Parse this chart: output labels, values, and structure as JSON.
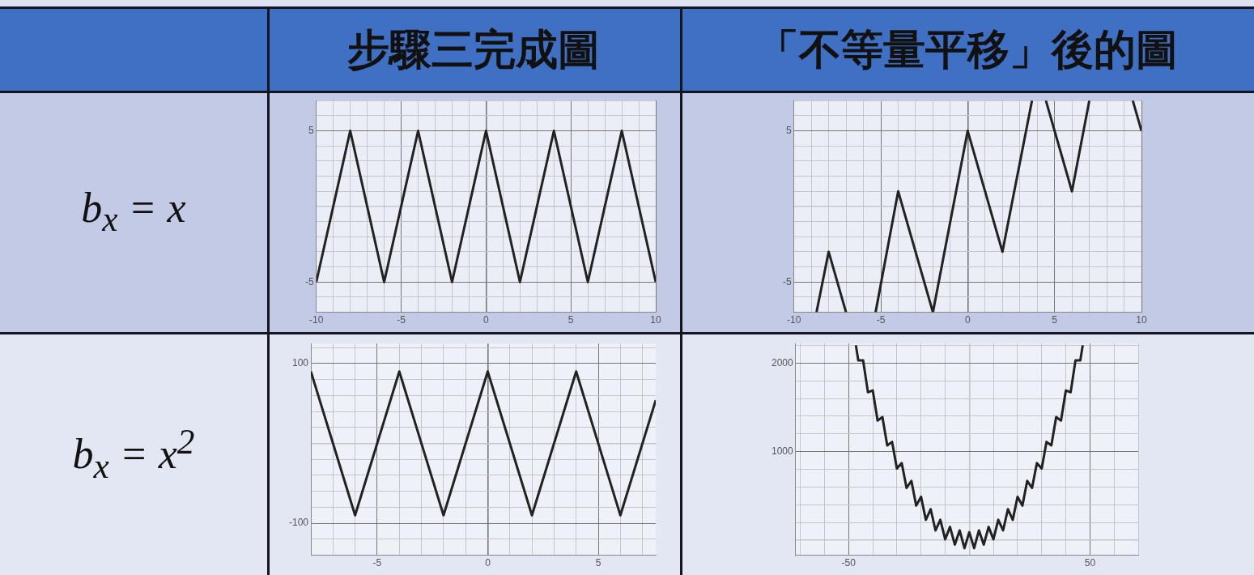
{
  "chart_data": [
    {
      "type": "other",
      "annotations": [
        "步驟三完成圖",
        "「不等量平移」後的圖",
        "b$_{x}$ = x",
        "b$_{x}$ = x$^{2}$"
      ]
    },
    {
      "type": "line",
      "grid": true,
      "xlim": [
        -10,
        10
      ],
      "ylim": [
        -7,
        7
      ],
      "xticks": [
        -10,
        {
          "value": -9,
          "label": null
        },
        {
          "value": -8,
          "label": null
        },
        {
          "value": -7,
          "label": null
        },
        {
          "value": -6,
          "label": null
        },
        -5,
        {
          "value": -4,
          "label": null
        },
        {
          "value": -3,
          "label": null
        },
        {
          "value": -2,
          "label": null
        },
        {
          "value": -1,
          "label": null
        },
        0,
        {
          "value": 1,
          "label": null
        },
        {
          "value": 2,
          "label": null
        },
        {
          "value": 3,
          "label": null
        },
        {
          "value": 4,
          "label": null
        },
        5,
        {
          "value": 6,
          "label": null
        },
        {
          "value": 7,
          "label": null
        },
        {
          "value": 8,
          "label": null
        },
        {
          "value": 9,
          "label": null
        },
        10
      ],
      "yticks": [
        {
          "value": -7,
          "label": null
        },
        {
          "value": -6,
          "label": null
        },
        -5,
        {
          "value": -4,
          "label": null
        },
        {
          "value": -3,
          "label": null
        },
        {
          "value": -2,
          "label": null
        },
        {
          "value": -1,
          "label": null
        },
        {
          "value": 0,
          "label": null
        },
        {
          "value": 1,
          "label": null
        },
        {
          "value": 2,
          "label": null
        },
        {
          "value": 3,
          "label": null
        },
        {
          "value": 4,
          "label": null
        },
        5,
        {
          "value": 6,
          "label": null
        },
        {
          "value": 7,
          "label": null
        }
      ],
      "series": [
        {
          "color": "#222222",
          "x": [
            -10,
            -8,
            -6,
            -4,
            -2,
            0,
            2,
            4,
            6,
            8,
            10
          ],
          "values": [
            -5,
            5,
            -5,
            5,
            -5,
            5,
            -5,
            5,
            -5,
            5,
            -5
          ]
        }
      ]
    },
    {
      "type": "line",
      "grid": true,
      "xlim": [
        -10,
        10
      ],
      "ylim": [
        -7,
        7
      ],
      "xticks": [
        -10,
        {
          "value": -9,
          "label": null
        },
        {
          "value": -8,
          "label": null
        },
        {
          "value": -7,
          "label": null
        },
        {
          "value": -6,
          "label": null
        },
        -5,
        {
          "value": -4,
          "label": null
        },
        {
          "value": -3,
          "label": null
        },
        {
          "value": -2,
          "label": null
        },
        {
          "value": -1,
          "label": null
        },
        0,
        {
          "value": 1,
          "label": null
        },
        {
          "value": 2,
          "label": null
        },
        {
          "value": 3,
          "label": null
        },
        {
          "value": 4,
          "label": null
        },
        5,
        {
          "value": 6,
          "label": null
        },
        {
          "value": 7,
          "label": null
        },
        {
          "value": 8,
          "label": null
        },
        {
          "value": 9,
          "label": null
        },
        10
      ],
      "yticks": [
        {
          "value": -7,
          "label": null
        },
        {
          "value": -6,
          "label": null
        },
        -5,
        {
          "value": -4,
          "label": null
        },
        {
          "value": -3,
          "label": null
        },
        {
          "value": -2,
          "label": null
        },
        {
          "value": -1,
          "label": null
        },
        {
          "value": 0,
          "label": null
        },
        {
          "value": 1,
          "label": null
        },
        {
          "value": 2,
          "label": null
        },
        {
          "value": 3,
          "label": null
        },
        {
          "value": 4,
          "label": null
        },
        5,
        {
          "value": 6,
          "label": null
        },
        {
          "value": 7,
          "label": null
        }
      ],
      "series": [
        {
          "color": "#222222",
          "x": [
            -8.7,
            -8,
            -7,
            -6,
            -5.3,
            -4,
            -2,
            0,
            2,
            3.7,
            4,
            4.5,
            6,
            7,
            8,
            9.5,
            10
          ],
          "values": [
            -7,
            -3,
            -7,
            null,
            -7,
            1,
            -7,
            5,
            -3,
            7,
            null,
            7,
            1,
            7,
            null,
            7,
            5
          ]
        }
      ]
    },
    {
      "type": "line",
      "grid": true,
      "xlim": [
        -8,
        7.6
      ],
      "ylim": [
        -140,
        125
      ],
      "xticks": [
        {
          "value": -8,
          "label": null
        },
        {
          "value": -7,
          "label": null
        },
        {
          "value": -6,
          "label": null
        },
        -5,
        {
          "value": -4,
          "label": null
        },
        {
          "value": -3,
          "label": null
        },
        {
          "value": -2,
          "label": null
        },
        {
          "value": -1,
          "label": null
        },
        0,
        {
          "value": 1,
          "label": null
        },
        {
          "value": 2,
          "label": null
        },
        {
          "value": 3,
          "label": null
        },
        {
          "value": 4,
          "label": null
        },
        5,
        {
          "value": 6,
          "label": null
        },
        {
          "value": 7,
          "label": null
        }
      ],
      "yticks": [
        {
          "value": -140,
          "label": null
        },
        {
          "value": -120,
          "label": null
        },
        -100,
        {
          "value": -80,
          "label": null
        },
        {
          "value": -60,
          "label": null
        },
        {
          "value": -40,
          "label": null
        },
        {
          "value": -20,
          "label": null
        },
        {
          "value": 0,
          "label": null
        },
        {
          "value": 20,
          "label": null
        },
        {
          "value": 40,
          "label": null
        },
        {
          "value": 60,
          "label": null
        },
        {
          "value": 80,
          "label": null
        },
        100,
        {
          "value": 120,
          "label": null
        }
      ],
      "series": [
        {
          "color": "#222222",
          "x": [
            -8,
            -6,
            -4,
            -2,
            0,
            2,
            4,
            6,
            7.6
          ],
          "values": [
            90,
            -90,
            90,
            -90,
            90,
            -90,
            90,
            -90,
            54
          ]
        }
      ]
    },
    {
      "type": "line",
      "grid": true,
      "xlim": [
        -72,
        70
      ],
      "ylim": [
        -170,
        2220
      ],
      "xticks": [
        {
          "value": -70,
          "label": null
        },
        {
          "value": -60,
          "label": null
        },
        -50,
        {
          "value": -40,
          "label": null
        },
        {
          "value": -30,
          "label": null
        },
        {
          "value": -20,
          "label": null
        },
        {
          "value": -10,
          "label": null
        },
        {
          "value": 0,
          "label": null
        },
        {
          "value": 10,
          "label": null
        },
        {
          "value": 20,
          "label": null
        },
        {
          "value": 30,
          "label": null
        },
        {
          "value": 40,
          "label": null
        },
        50,
        {
          "value": 60,
          "label": null
        },
        {
          "value": 70,
          "label": null
        }
      ],
      "yticks": [
        {
          "value": 0,
          "label": null
        },
        {
          "value": 200,
          "label": null
        },
        {
          "value": 400,
          "label": null
        },
        {
          "value": 600,
          "label": null
        },
        {
          "value": 800,
          "label": null
        },
        1000,
        {
          "value": 1200,
          "label": null
        },
        {
          "value": 1400,
          "label": null
        },
        {
          "value": 1600,
          "label": null
        },
        {
          "value": 1800,
          "label": null
        },
        2000,
        {
          "value": 2200,
          "label": null
        }
      ],
      "series": [
        {
          "color": "#222222",
          "x": [
            -47,
            -46,
            -44,
            -42,
            -40,
            -38,
            -36,
            -34,
            -32,
            -30,
            -28,
            -26,
            -24,
            -22,
            -20,
            -18,
            -16,
            -14,
            -12,
            -10,
            -8,
            -6,
            -4,
            -2,
            0,
            2,
            4,
            6,
            8,
            10,
            12,
            14,
            16,
            18,
            20,
            22,
            24,
            26,
            28,
            30,
            32,
            34,
            36,
            38,
            40,
            42,
            44,
            46,
            47
          ],
          "values": [
            2200,
            2030,
            2030,
            1670,
            1690,
            1350,
            1390,
            1070,
            1110,
            810,
            870,
            590,
            670,
            390,
            490,
            230,
            350,
            110,
            230,
            10,
            150,
            -50,
            110,
            -90,
            90,
            -90,
            110,
            -50,
            150,
            10,
            230,
            110,
            350,
            230,
            490,
            390,
            670,
            590,
            870,
            810,
            1110,
            1070,
            1390,
            1350,
            1690,
            1670,
            2030,
            2030,
            2200
          ]
        }
      ]
    }
  ]
}
